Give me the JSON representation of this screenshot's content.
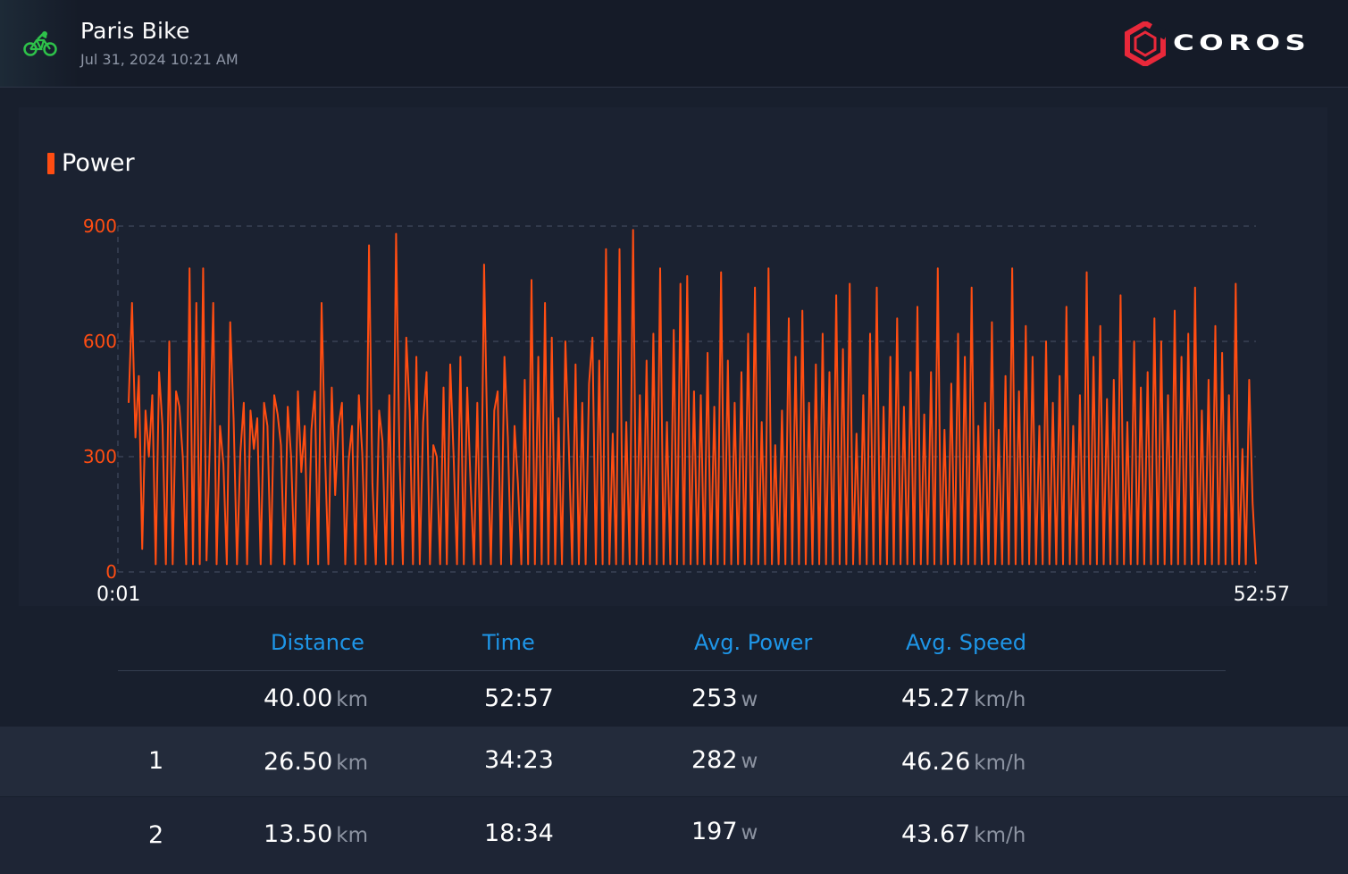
{
  "header": {
    "title": "Paris Bike",
    "datetime": "Jul 31, 2024 10:21 AM",
    "sport_icon": "bike-icon",
    "brand": "COROS",
    "sport_color": "#2ec24a",
    "brand_color": "#e8283a"
  },
  "chart_data": {
    "type": "line",
    "title": "Power",
    "color": "#ff4d12",
    "xlabel": "",
    "ylabel": "",
    "x_start_label": "0:01",
    "x_end_label": "52:57",
    "x_range_seconds": [
      1,
      3177
    ],
    "ylim": [
      0,
      900
    ],
    "yticks": [
      0,
      300,
      600,
      900
    ],
    "grid": true,
    "series": [
      {
        "values": [
          440,
          700,
          350,
          510,
          60,
          420,
          300,
          460,
          20,
          520,
          380,
          20,
          600,
          20,
          470,
          430,
          300,
          20,
          790,
          20,
          700,
          20,
          790,
          30,
          340,
          700,
          20,
          380,
          280,
          20,
          650,
          400,
          20,
          310,
          440,
          20,
          420,
          320,
          400,
          20,
          440,
          380,
          20,
          460,
          410,
          330,
          20,
          430,
          300,
          20,
          470,
          260,
          380,
          20,
          370,
          470,
          20,
          700,
          310,
          20,
          480,
          200,
          380,
          440,
          20,
          290,
          380,
          20,
          460,
          310,
          20,
          850,
          230,
          20,
          420,
          340,
          20,
          460,
          20,
          880,
          300,
          20,
          610,
          420,
          20,
          560,
          20,
          390,
          520,
          20,
          330,
          300,
          20,
          480,
          20,
          540,
          300,
          20,
          560,
          20,
          480,
          230,
          20,
          440,
          20,
          800,
          320,
          20,
          420,
          470,
          20,
          560,
          350,
          20,
          380,
          230,
          20,
          500,
          20,
          760,
          20,
          560,
          20,
          700,
          20,
          610,
          20,
          400,
          20,
          600,
          330,
          20,
          540,
          20,
          440,
          20,
          490,
          610,
          20,
          550,
          20,
          840,
          20,
          360,
          20,
          840,
          20,
          390,
          20,
          890,
          20,
          460,
          20,
          550,
          20,
          620,
          20,
          790,
          20,
          390,
          20,
          630,
          20,
          750,
          20,
          770,
          20,
          470,
          20,
          460,
          20,
          570,
          20,
          430,
          20,
          780,
          20,
          550,
          20,
          440,
          20,
          520,
          20,
          620,
          20,
          740,
          20,
          390,
          20,
          790,
          20,
          330,
          20,
          420,
          20,
          660,
          20,
          560,
          20,
          680,
          20,
          440,
          20,
          540,
          20,
          620,
          20,
          520,
          20,
          720,
          20,
          580,
          20,
          750,
          20,
          360,
          20,
          460,
          20,
          620,
          20,
          740,
          20,
          430,
          20,
          560,
          20,
          660,
          20,
          430,
          20,
          520,
          20,
          690,
          20,
          410,
          20,
          520,
          20,
          790,
          20,
          370,
          20,
          490,
          20,
          620,
          20,
          560,
          20,
          740,
          20,
          380,
          20,
          440,
          20,
          650,
          20,
          370,
          20,
          510,
          20,
          790,
          20,
          470,
          20,
          640,
          20,
          560,
          20,
          380,
          20,
          600,
          20,
          440,
          20,
          510,
          20,
          690,
          20,
          380,
          20,
          460,
          20,
          780,
          20,
          560,
          20,
          640,
          20,
          450,
          20,
          500,
          20,
          720,
          20,
          390,
          20,
          600,
          20,
          480,
          20,
          520,
          20,
          660,
          20,
          600,
          20,
          460,
          20,
          680,
          20,
          560,
          20,
          620,
          20,
          740,
          20,
          420,
          20,
          500,
          20,
          640,
          20,
          570,
          20,
          460,
          20,
          750,
          20,
          320,
          20,
          500,
          180,
          20
        ]
      }
    ]
  },
  "summary": {
    "headers": [
      "Distance",
      "Time",
      "Avg. Power",
      "Avg. Speed"
    ],
    "totals": {
      "distance": "40.00",
      "distance_unit": "km",
      "time": "52:57",
      "power": "253",
      "power_unit": "w",
      "speed": "45.27",
      "speed_unit": "km/h"
    },
    "laps": [
      {
        "num": "1",
        "distance": "26.50",
        "distance_unit": "km",
        "time": "34:23",
        "power": "282",
        "power_unit": "w",
        "speed": "46.26",
        "speed_unit": "km/h"
      },
      {
        "num": "2",
        "distance": "13.50",
        "distance_unit": "km",
        "time": "18:34",
        "power": "197",
        "power_unit": "w",
        "speed": "43.67",
        "speed_unit": "km/h"
      }
    ],
    "header_color": "#1e96e8"
  }
}
